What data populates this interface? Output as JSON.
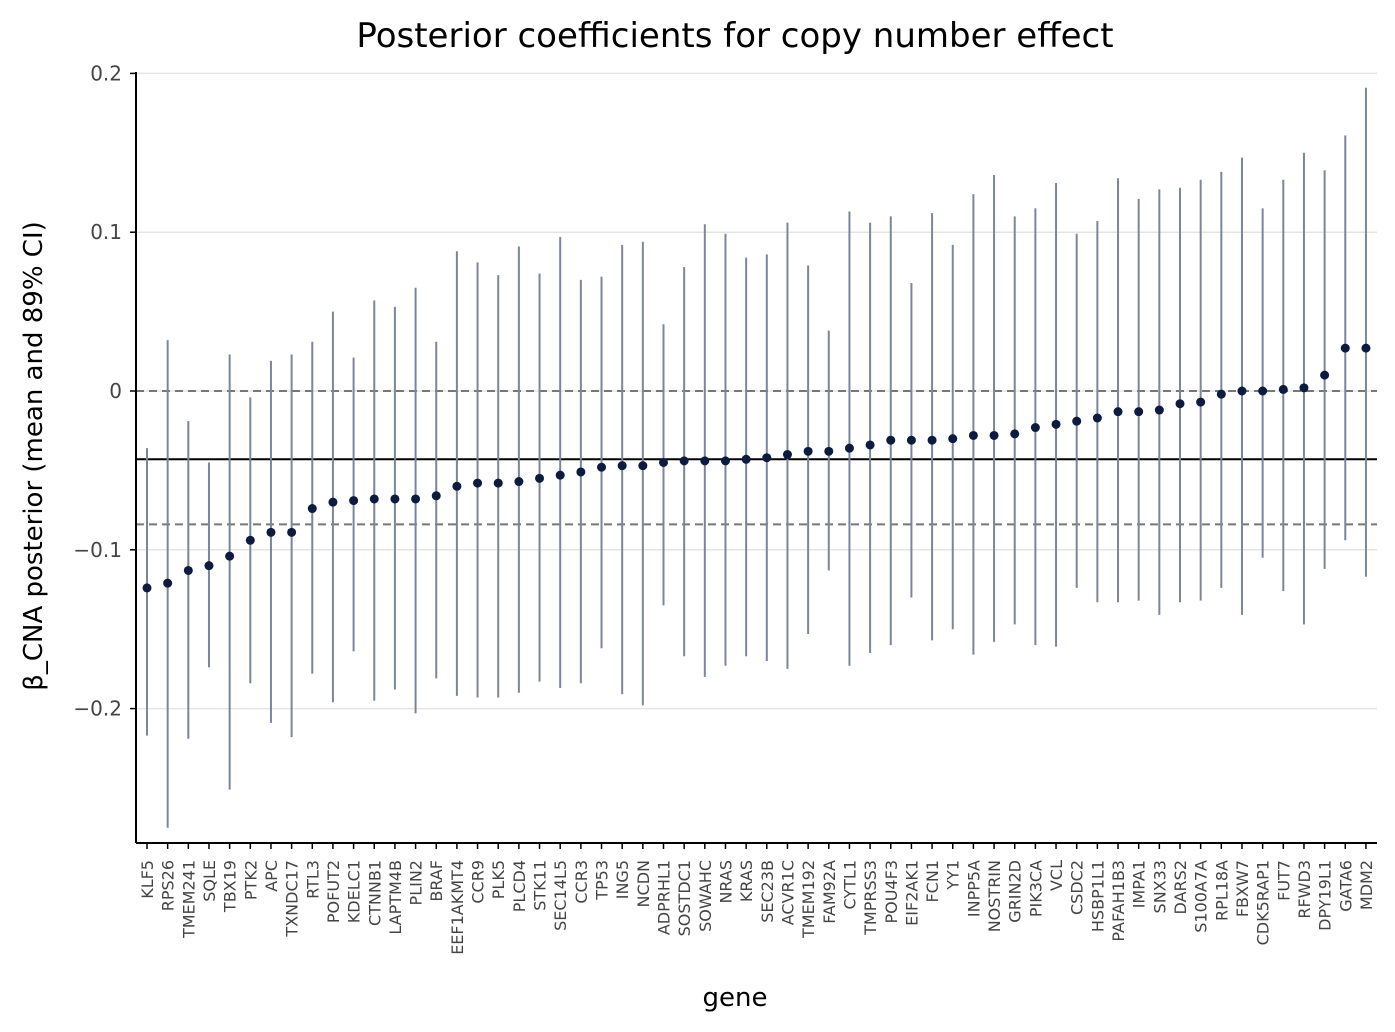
{
  "chart_data": {
    "type": "scatter",
    "title": "Posterior coefficients for copy number effect",
    "xlabel": "gene",
    "ylabel": "β_CNA posterior (mean and 89% CI)",
    "ylim": [
      -0.285,
      0.2
    ],
    "yticks": [
      {
        "value": 0.2,
        "label": "0.2"
      },
      {
        "value": 0.1,
        "label": "0.1"
      },
      {
        "value": 0,
        "label": "0"
      },
      {
        "value": -0.1,
        "label": "−0.1"
      },
      {
        "value": -0.2,
        "label": "−0.2"
      }
    ],
    "grid": true,
    "reference_lines": {
      "mean": -0.043,
      "lower": -0.084,
      "upper": 0.0
    },
    "colors": {
      "point": "#0d1b3e",
      "interval": "#7a869c",
      "grid": "#e5e5e5",
      "ref": "#777777",
      "mean_line": "#000000"
    },
    "categories": [
      "KLF5",
      "RPS26",
      "TMEM241",
      "SQLE",
      "TBX19",
      "PTK2",
      "APC",
      "TXNDC17",
      "RTL3",
      "POFUT2",
      "KDELC1",
      "CTNNB1",
      "LAPTM4B",
      "PLIN2",
      "BRAF",
      "EEF1AKMT4",
      "CCR9",
      "PLK5",
      "PLCD4",
      "STK11",
      "SEC14L5",
      "CCR3",
      "TP53",
      "ING5",
      "NCDN",
      "ADPRHL1",
      "SOSTDC1",
      "SOWAHC",
      "NRAS",
      "KRAS",
      "SEC23B",
      "ACVR1C",
      "TMEM192",
      "FAM92A",
      "CYTL1",
      "TMPRSS3",
      "POU4F3",
      "EIF2AK1",
      "FCN1",
      "YY1",
      "INPP5A",
      "NOSTRIN",
      "GRIN2D",
      "PIK3CA",
      "VCL",
      "CSDC2",
      "HSBP1L1",
      "PAFAH1B3",
      "IMPA1",
      "SNX33",
      "DARS2",
      "S100A7A",
      "RPL18A",
      "FBXW7",
      "CDK5RAP1",
      "FUT7",
      "RFWD3",
      "DPY19L1",
      "GATA6",
      "MDM2"
    ],
    "mean": [
      -0.124,
      -0.121,
      -0.113,
      -0.11,
      -0.104,
      -0.094,
      -0.089,
      -0.089,
      -0.074,
      -0.07,
      -0.069,
      -0.068,
      -0.068,
      -0.068,
      -0.066,
      -0.06,
      -0.058,
      -0.058,
      -0.057,
      -0.055,
      -0.053,
      -0.051,
      -0.048,
      -0.047,
      -0.047,
      -0.045,
      -0.044,
      -0.044,
      -0.044,
      -0.043,
      -0.042,
      -0.04,
      -0.038,
      -0.038,
      -0.036,
      -0.034,
      -0.031,
      -0.031,
      -0.031,
      -0.03,
      -0.028,
      -0.028,
      -0.027,
      -0.023,
      -0.021,
      -0.019,
      -0.017,
      -0.013,
      -0.013,
      -0.012,
      -0.008,
      -0.007,
      -0.002,
      0.0,
      0.0,
      0.001,
      0.002,
      0.01,
      0.027,
      0.027
    ],
    "lower": [
      -0.217,
      -0.275,
      -0.219,
      -0.174,
      -0.251,
      -0.184,
      -0.209,
      -0.218,
      -0.178,
      -0.196,
      -0.164,
      -0.195,
      -0.188,
      -0.203,
      -0.181,
      -0.192,
      -0.193,
      -0.193,
      -0.19,
      -0.183,
      -0.187,
      -0.184,
      -0.162,
      -0.191,
      -0.198,
      -0.135,
      -0.167,
      -0.18,
      -0.173,
      -0.167,
      -0.17,
      -0.175,
      -0.153,
      -0.113,
      -0.173,
      -0.165,
      -0.16,
      -0.13,
      -0.157,
      -0.15,
      -0.166,
      -0.158,
      -0.147,
      -0.16,
      -0.161,
      -0.124,
      -0.133,
      -0.133,
      -0.132,
      -0.141,
      -0.133,
      -0.132,
      -0.124,
      -0.141,
      -0.105,
      -0.126,
      -0.147,
      -0.112,
      -0.094,
      -0.117
    ],
    "upper": [
      -0.036,
      0.032,
      -0.019,
      -0.045,
      0.023,
      -0.004,
      0.019,
      0.023,
      0.031,
      0.05,
      0.021,
      0.057,
      0.053,
      0.065,
      0.031,
      0.088,
      0.081,
      0.073,
      0.091,
      0.074,
      0.097,
      0.07,
      0.072,
      0.092,
      0.094,
      0.042,
      0.078,
      0.105,
      0.099,
      0.084,
      0.086,
      0.106,
      0.079,
      0.038,
      0.113,
      0.106,
      0.11,
      0.068,
      0.112,
      0.092,
      0.124,
      0.136,
      0.11,
      0.115,
      0.131,
      0.099,
      0.107,
      0.134,
      0.121,
      0.127,
      0.128,
      0.133,
      0.138,
      0.147,
      0.115,
      0.133,
      0.15,
      0.139,
      0.161,
      0.191
    ]
  }
}
